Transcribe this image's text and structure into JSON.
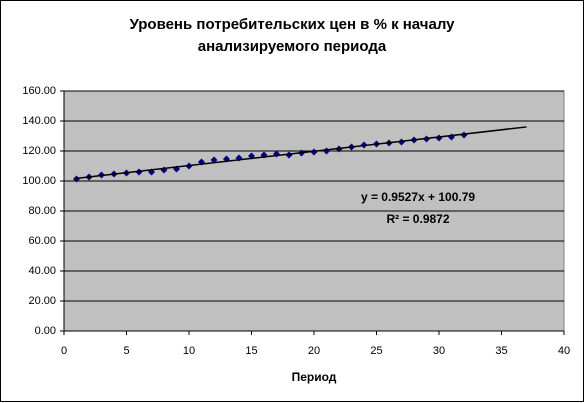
{
  "chart_data": {
    "type": "scatter",
    "title": [
      "Уровень потребительских цен в % к началу",
      "анализируемого периода"
    ],
    "x_label": "Период",
    "x": [
      1,
      2,
      3,
      4,
      5,
      6,
      7,
      8,
      9,
      10,
      11,
      12,
      13,
      14,
      15,
      16,
      17,
      18,
      19,
      20,
      21,
      22,
      23,
      24,
      25,
      26,
      27,
      28,
      29,
      30,
      31,
      32
    ],
    "series": [
      {
        "color": "#000080",
        "values": [
          101.3,
          102.7,
          104,
          104.7,
          105.3,
          106,
          106,
          107.3,
          108,
          110,
          112.7,
          114,
          114.7,
          115.3,
          116.7,
          117.3,
          118,
          117.3,
          118.7,
          119.3,
          120,
          121.3,
          122.7,
          124,
          124.7,
          125.3,
          126,
          127.3,
          128,
          128.7,
          129.3,
          130.7
        ]
      }
    ],
    "trendline": {
      "label": "y = 0.9527x + 100.79",
      "r2_label": "R² = 0.9872",
      "slope": 0.9527,
      "intercept": 100.79,
      "x_range": [
        1,
        37
      ],
      "color": "#000000"
    },
    "xlim": [
      0,
      40
    ],
    "xticks": [
      0,
      5,
      10,
      15,
      20,
      25,
      30,
      35,
      40
    ],
    "ylim": [
      0,
      160
    ],
    "yticks": [
      {
        "value": 0,
        "label": "0.00"
      },
      {
        "value": 20,
        "label": "20.00"
      },
      {
        "value": 40,
        "label": "40.00"
      },
      {
        "value": 60,
        "label": "60.00"
      },
      {
        "value": 80,
        "label": "80.00"
      },
      {
        "value": 100,
        "label": "100.00"
      },
      {
        "value": 120,
        "label": "120.00"
      },
      {
        "value": 140,
        "label": "140.00"
      },
      {
        "value": 160,
        "label": "160.00"
      }
    ],
    "grid": true,
    "plot_background": "#c0c0c0"
  }
}
